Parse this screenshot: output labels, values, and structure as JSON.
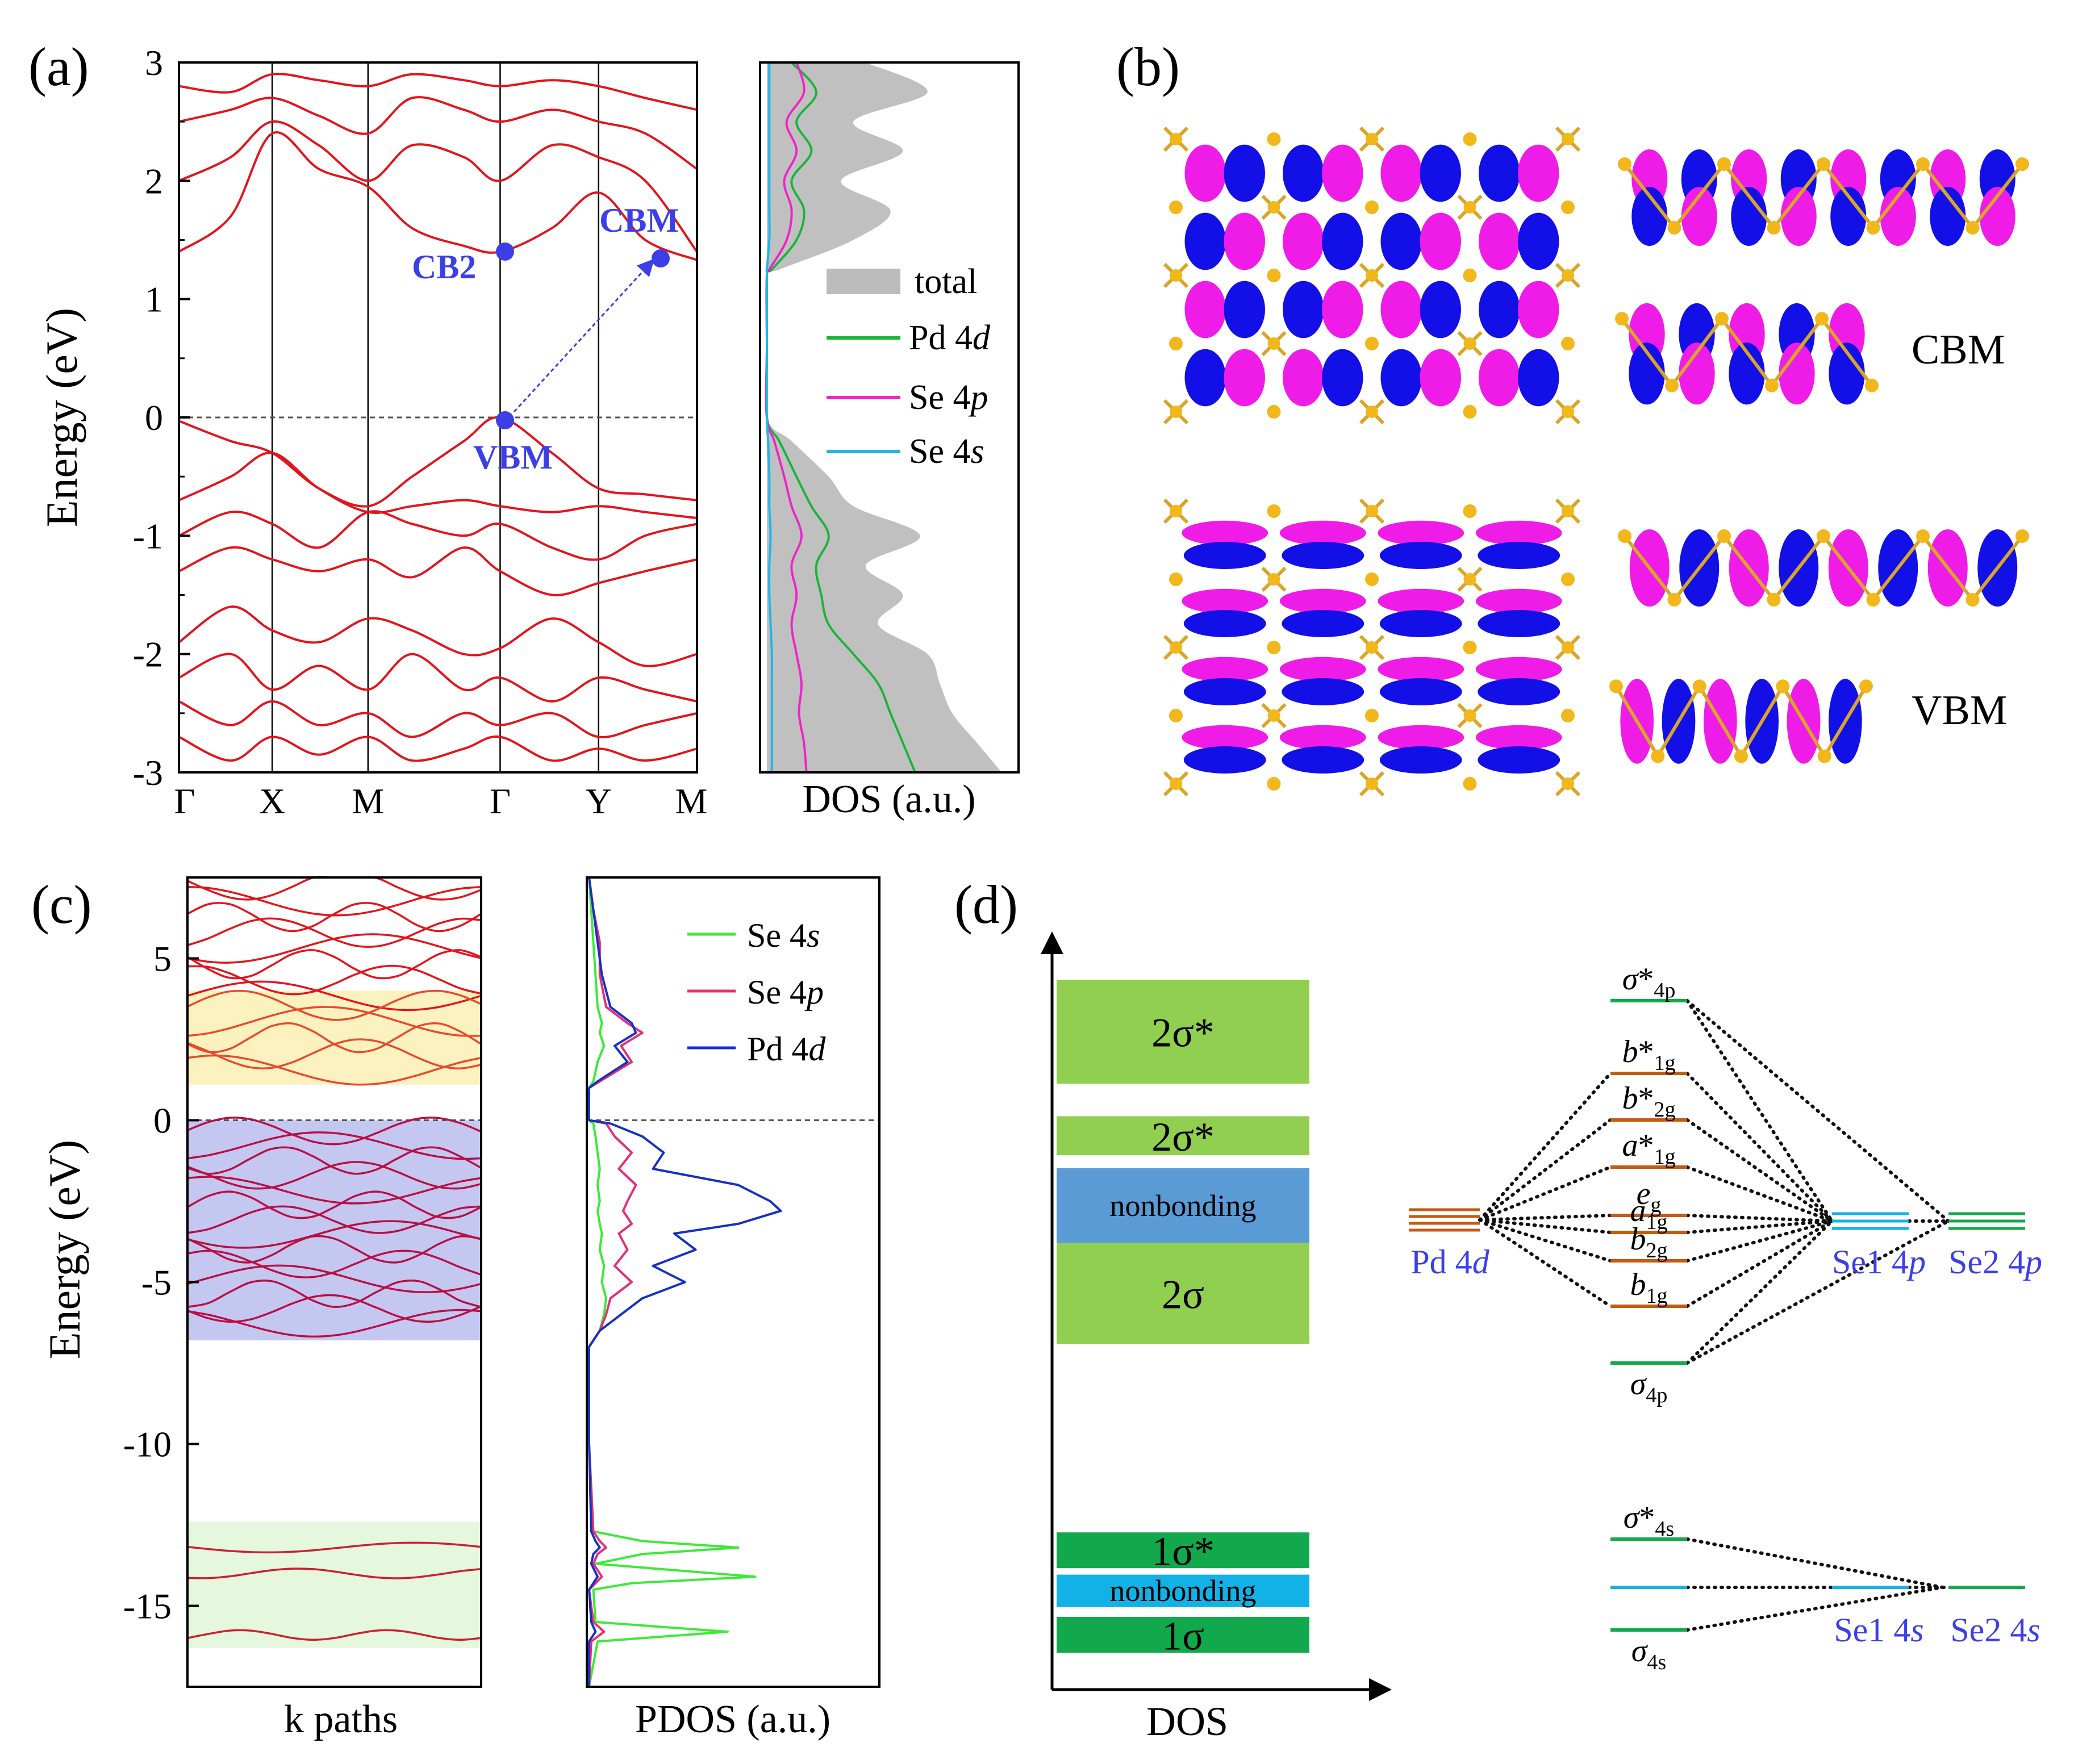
{
  "panels": {
    "a": {
      "label": "(a)"
    },
    "b": {
      "label": "(b)",
      "cbm_label": "CBM",
      "vbm_label": "VBM"
    },
    "c": {
      "label": "(c)"
    },
    "d": {
      "label": "(d)"
    }
  },
  "chart_data": [
    {
      "id": "a-bands",
      "type": "line",
      "ylabel": "Energy (eV)",
      "ylim": [
        -3,
        3
      ],
      "yticks": [
        "3",
        "2",
        "1",
        "0",
        "-1",
        "-2",
        "-3"
      ],
      "ytick_values": [
        3,
        2,
        1,
        0,
        -1,
        -2,
        -3
      ],
      "kpath_labels": [
        "Γ",
        "X",
        "M",
        "Γ",
        "Y",
        "M"
      ],
      "kpath_positions": [
        0,
        0.18,
        0.365,
        0.62,
        0.81,
        1.0
      ],
      "fermi_level": 0,
      "annotations": [
        {
          "text": "CBM",
          "k": 0.94,
          "E": 1.33
        },
        {
          "text": "CB2",
          "k": 0.62,
          "E": 1.4
        },
        {
          "text": "VBM",
          "k": 0.62,
          "E": 0.0
        }
      ],
      "series_color": "#e3141c",
      "series": [
        {
          "name": "cb1",
          "k": [
            0,
            0.1,
            0.18,
            0.27,
            0.365,
            0.45,
            0.55,
            0.62,
            0.72,
            0.81,
            0.9,
            1.0
          ],
          "E": [
            1.4,
            1.7,
            2.4,
            2.1,
            1.95,
            1.6,
            1.45,
            1.4,
            1.6,
            1.9,
            1.5,
            1.33
          ]
        },
        {
          "name": "cb2",
          "k": [
            0,
            0.1,
            0.18,
            0.27,
            0.365,
            0.45,
            0.55,
            0.62,
            0.72,
            0.81,
            0.9,
            1.0
          ],
          "E": [
            2.0,
            2.2,
            2.5,
            2.3,
            2.0,
            2.3,
            2.2,
            2.0,
            2.3,
            2.2,
            2.0,
            1.4
          ]
        },
        {
          "name": "cb3",
          "k": [
            0,
            0.1,
            0.18,
            0.27,
            0.365,
            0.45,
            0.55,
            0.62,
            0.72,
            0.81,
            0.9,
            1.0
          ],
          "E": [
            2.5,
            2.6,
            2.7,
            2.55,
            2.4,
            2.7,
            2.6,
            2.5,
            2.6,
            2.5,
            2.4,
            2.1
          ]
        },
        {
          "name": "cb4",
          "k": [
            0,
            0.1,
            0.18,
            0.27,
            0.365,
            0.45,
            0.55,
            0.62,
            0.72,
            0.81,
            0.9,
            1.0
          ],
          "E": [
            2.8,
            2.75,
            2.9,
            2.85,
            2.8,
            2.9,
            2.85,
            2.8,
            2.85,
            2.8,
            2.7,
            2.6
          ]
        },
        {
          "name": "vb1",
          "k": [
            0,
            0.1,
            0.18,
            0.27,
            0.365,
            0.45,
            0.55,
            0.62,
            0.72,
            0.81,
            0.9,
            1.0
          ],
          "E": [
            -0.03,
            -0.2,
            -0.3,
            -0.6,
            -0.75,
            -0.5,
            -0.2,
            0.0,
            -0.3,
            -0.6,
            -0.65,
            -0.7
          ]
        },
        {
          "name": "vb2",
          "k": [
            0,
            0.1,
            0.18,
            0.27,
            0.365,
            0.45,
            0.55,
            0.62,
            0.72,
            0.81,
            0.9,
            1.0
          ],
          "E": [
            -0.7,
            -0.5,
            -0.3,
            -0.6,
            -0.8,
            -0.75,
            -0.7,
            -0.75,
            -0.8,
            -0.75,
            -0.8,
            -0.85
          ]
        },
        {
          "name": "vb3",
          "k": [
            0,
            0.1,
            0.18,
            0.27,
            0.365,
            0.45,
            0.55,
            0.62,
            0.72,
            0.81,
            0.9,
            1.0
          ],
          "E": [
            -1.0,
            -0.8,
            -0.9,
            -1.1,
            -0.8,
            -0.9,
            -1.0,
            -0.9,
            -1.1,
            -1.2,
            -1.0,
            -0.9
          ]
        },
        {
          "name": "vb4",
          "k": [
            0,
            0.1,
            0.18,
            0.27,
            0.365,
            0.45,
            0.55,
            0.62,
            0.72,
            0.81,
            0.9,
            1.0
          ],
          "E": [
            -1.3,
            -1.1,
            -1.2,
            -1.3,
            -1.2,
            -1.35,
            -1.1,
            -1.3,
            -1.5,
            -1.4,
            -1.3,
            -1.2
          ]
        },
        {
          "name": "vb5",
          "k": [
            0,
            0.1,
            0.18,
            0.27,
            0.365,
            0.45,
            0.55,
            0.62,
            0.72,
            0.81,
            0.9,
            1.0
          ],
          "E": [
            -1.9,
            -1.6,
            -1.8,
            -1.9,
            -1.7,
            -1.8,
            -2.0,
            -1.95,
            -1.7,
            -1.9,
            -2.1,
            -2.0
          ]
        },
        {
          "name": "vb6",
          "k": [
            0,
            0.1,
            0.18,
            0.27,
            0.365,
            0.45,
            0.55,
            0.62,
            0.72,
            0.81,
            0.9,
            1.0
          ],
          "E": [
            -2.2,
            -2.0,
            -2.3,
            -2.1,
            -2.3,
            -2.0,
            -2.3,
            -2.2,
            -2.4,
            -2.2,
            -2.3,
            -2.4
          ]
        },
        {
          "name": "vb7",
          "k": [
            0,
            0.1,
            0.18,
            0.27,
            0.365,
            0.45,
            0.55,
            0.62,
            0.72,
            0.81,
            0.9,
            1.0
          ],
          "E": [
            -2.4,
            -2.6,
            -2.4,
            -2.6,
            -2.5,
            -2.7,
            -2.5,
            -2.6,
            -2.5,
            -2.7,
            -2.6,
            -2.5
          ]
        },
        {
          "name": "vb8",
          "k": [
            0,
            0.1,
            0.18,
            0.27,
            0.365,
            0.45,
            0.55,
            0.62,
            0.72,
            0.81,
            0.9,
            1.0
          ],
          "E": [
            -2.7,
            -2.9,
            -2.7,
            -2.85,
            -2.7,
            -2.9,
            -2.8,
            -2.7,
            -2.9,
            -2.8,
            -2.9,
            -2.8
          ]
        }
      ]
    },
    {
      "id": "a-dos",
      "type": "area",
      "xlabel": "DOS (a.u.)",
      "ylim": [
        -3,
        3
      ],
      "energy": [
        3.0,
        2.75,
        2.5,
        2.25,
        2.0,
        1.75,
        1.5,
        1.25,
        1.2,
        0.6,
        0.0,
        -0.2,
        -0.5,
        -0.75,
        -1.0,
        -1.25,
        -1.5,
        -1.75,
        -2.0,
        -2.25,
        -2.5,
        -2.75,
        -3.0
      ],
      "series": [
        {
          "name": "total",
          "color": "#c0c0c0",
          "values": [
            0.4,
            0.65,
            0.35,
            0.55,
            0.3,
            0.5,
            0.35,
            0.05,
            0.0,
            0.0,
            0.0,
            0.1,
            0.25,
            0.35,
            0.62,
            0.4,
            0.55,
            0.45,
            0.65,
            0.7,
            0.75,
            0.85,
            0.95
          ]
        },
        {
          "name": "Pd 4d",
          "color": "#1bb33c",
          "values": [
            0.1,
            0.2,
            0.12,
            0.18,
            0.1,
            0.15,
            0.12,
            0.02,
            0.0,
            0.0,
            0.0,
            0.05,
            0.12,
            0.18,
            0.25,
            0.2,
            0.22,
            0.25,
            0.35,
            0.45,
            0.5,
            0.55,
            0.6
          ]
        },
        {
          "name": "Se 4p",
          "color": "#ee26c5",
          "values": [
            0.12,
            0.15,
            0.08,
            0.12,
            0.07,
            0.1,
            0.08,
            0.01,
            0.0,
            0.0,
            0.0,
            0.03,
            0.07,
            0.1,
            0.14,
            0.1,
            0.12,
            0.1,
            0.12,
            0.14,
            0.13,
            0.15,
            0.16
          ]
        },
        {
          "name": "Se 4s",
          "color": "#20b6e6",
          "values": [
            0.01,
            0.01,
            0.01,
            0.01,
            0.01,
            0.01,
            0.01,
            0.0,
            0.0,
            0.0,
            0.0,
            0.005,
            0.01,
            0.01,
            0.015,
            0.01,
            0.01,
            0.015,
            0.02,
            0.02,
            0.02,
            0.02,
            0.02
          ]
        }
      ],
      "legend": [
        {
          "symbol": "total",
          "prefix": "total",
          "italic": ""
        },
        {
          "symbol": "Pd 4d",
          "prefix": "Pd 4",
          "italic": "d"
        },
        {
          "symbol": "Se 4p",
          "prefix": "Se 4",
          "italic": "p"
        },
        {
          "symbol": "Se 4s",
          "prefix": "Se 4",
          "italic": "s"
        }
      ]
    },
    {
      "id": "c-bands",
      "type": "line",
      "xlabel": "k paths",
      "ylabel": "Energy (eV)",
      "ylim": [
        -17.5,
        7.5
      ],
      "yticks": [
        "5",
        "0",
        "-5",
        "-10",
        "-15"
      ],
      "ytick_values": [
        5,
        0,
        -5,
        -10,
        -15
      ],
      "fermi_level": 0,
      "shaded_regions": [
        {
          "from": 1.1,
          "to": 4.0,
          "color": "#fbf2c0"
        },
        {
          "from": -6.8,
          "to": 0.0,
          "color": "#c4c7f0"
        },
        {
          "from": -16.3,
          "to": -12.4,
          "color": "#e5f7dc"
        }
      ],
      "band_groups": [
        {
          "name": "upper conduction",
          "color": "#e3141c",
          "count": 8,
          "E_min": 3.6,
          "E_max": 7.5
        },
        {
          "name": "conduction",
          "color": "#e84a2c",
          "count": 5,
          "E_min": 1.3,
          "E_max": 3.8
        },
        {
          "name": "valence",
          "color": "#b80f46",
          "count": 14,
          "E_min": -6.5,
          "E_max": -0.1
        },
        {
          "name": "Se 4s bands",
          "color": "#cc1f35",
          "count": 3,
          "centers": [
            -13.2,
            -14.0,
            -15.9
          ]
        }
      ]
    },
    {
      "id": "c-pdos",
      "type": "line",
      "xlabel": "PDOS (a.u.)",
      "ylim": [
        -17.5,
        7.5
      ],
      "energy": [
        7.5,
        6.5,
        5.5,
        4.5,
        3.5,
        3.0,
        2.7,
        2.3,
        1.8,
        1.2,
        1.0,
        0.2,
        0.0,
        -0.1,
        -0.5,
        -1.0,
        -1.5,
        -2.0,
        -2.5,
        -2.8,
        -3.2,
        -3.5,
        -4.0,
        -4.5,
        -5.0,
        -5.5,
        -6.0,
        -6.5,
        -7.0,
        -10.0,
        -12.7,
        -13.0,
        -13.2,
        -13.4,
        -13.7,
        -14.1,
        -14.3,
        -14.5,
        -15.5,
        -15.8,
        -16.1,
        -17.5
      ],
      "series": [
        {
          "name": "Se 4s",
          "color": "#3dea37",
          "values": [
            0.0,
            0.01,
            0.02,
            0.03,
            0.04,
            0.06,
            0.05,
            0.07,
            0.04,
            0.02,
            0.0,
            0.0,
            0.0,
            0.02,
            0.03,
            0.04,
            0.05,
            0.04,
            0.05,
            0.04,
            0.05,
            0.06,
            0.05,
            0.07,
            0.06,
            0.08,
            0.07,
            0.05,
            0.0,
            0.0,
            0.02,
            0.25,
            0.7,
            0.25,
            0.03,
            0.78,
            0.2,
            0.02,
            0.03,
            0.65,
            0.04,
            0.0
          ]
        },
        {
          "name": "Se 4p",
          "color": "#e52e77",
          "values": [
            0.0,
            0.02,
            0.05,
            0.05,
            0.08,
            0.18,
            0.25,
            0.15,
            0.2,
            0.05,
            0.0,
            0.0,
            0.0,
            0.08,
            0.12,
            0.2,
            0.14,
            0.22,
            0.18,
            0.16,
            0.2,
            0.14,
            0.18,
            0.12,
            0.2,
            0.1,
            0.08,
            0.05,
            0.0,
            0.0,
            0.02,
            0.05,
            0.08,
            0.04,
            0.02,
            0.06,
            0.03,
            0.0,
            0.02,
            0.07,
            0.01,
            0.0
          ]
        },
        {
          "name": "Pd 4d",
          "color": "#1630c4",
          "values": [
            0.0,
            0.02,
            0.04,
            0.06,
            0.1,
            0.2,
            0.22,
            0.12,
            0.18,
            0.04,
            0.0,
            0.0,
            0.0,
            0.1,
            0.25,
            0.35,
            0.3,
            0.7,
            0.85,
            0.9,
            0.7,
            0.4,
            0.5,
            0.3,
            0.45,
            0.25,
            0.15,
            0.05,
            0.0,
            0.0,
            0.01,
            0.03,
            0.05,
            0.02,
            0.01,
            0.04,
            0.02,
            0.0,
            0.01,
            0.03,
            0.0,
            0.0
          ]
        }
      ],
      "legend": [
        {
          "symbol": "Se 4s",
          "prefix": "Se 4",
          "italic": "s"
        },
        {
          "symbol": "Se 4p",
          "prefix": "Se 4",
          "italic": "p"
        },
        {
          "symbol": "Pd 4d",
          "prefix": "Pd 4",
          "italic": "d"
        }
      ]
    },
    {
      "id": "d-dos-blocks",
      "type": "bar",
      "xlabel": "DOS",
      "blocks": [
        {
          "label": "2σ*",
          "color": "#91cf50",
          "from": 1.3,
          "to": 4.5
        },
        {
          "label": "2σ*",
          "color": "#91cf50",
          "from": -0.9,
          "to": 0.3
        },
        {
          "label": "nonbonding",
          "color": "#5b9bd5",
          "from": -3.6,
          "to": -1.3
        },
        {
          "label": "2σ",
          "color": "#91cf50",
          "from": -6.7,
          "to": -3.6
        },
        {
          "label": "1σ*",
          "color": "#12a94d",
          "from": -13.6,
          "to": -12.5
        },
        {
          "label": "nonbonding",
          "color": "#12b2e6",
          "from": -14.8,
          "to": -13.8
        },
        {
          "label": "1σ",
          "color": "#12a94d",
          "from": -16.2,
          "to": -15.1
        }
      ]
    },
    {
      "id": "d-mo-diagram",
      "type": "diagram",
      "atomic_levels": [
        {
          "label": "Pd 4",
          "italic": "d",
          "color": "#c55a11"
        },
        {
          "label": "Se1 4",
          "italic": "p",
          "color": "#12b2e6"
        },
        {
          "label": "Se2 4",
          "italic": "p",
          "color": "#12a94d"
        },
        {
          "label": "Se1 4",
          "italic": "s",
          "color": "#12b2e6"
        },
        {
          "label": "Se2 4",
          "italic": "s",
          "color": "#12a94d"
        }
      ],
      "mo_levels_4p": [
        {
          "base": "σ",
          "star": "*",
          "sub": "4p",
          "color": "#12a94d"
        },
        {
          "base": "b",
          "star": "*",
          "sub": "1g",
          "color": "#c55a11"
        },
        {
          "base": "b",
          "star": "*",
          "sub": "2g",
          "color": "#c55a11"
        },
        {
          "base": "a",
          "star": "*",
          "sub": "1g",
          "color": "#c55a11"
        },
        {
          "base": "e",
          "star": "",
          "sub": "g",
          "color": "#c55a11"
        },
        {
          "base": "a",
          "star": "",
          "sub": "1g",
          "color": "#c55a11"
        },
        {
          "base": "b",
          "star": "",
          "sub": "2g",
          "color": "#c55a11"
        },
        {
          "base": "b",
          "star": "",
          "sub": "1g",
          "color": "#c55a11"
        },
        {
          "base": "σ",
          "star": "",
          "sub": "4p",
          "color": "#12a94d"
        }
      ],
      "mo_levels_4s": [
        {
          "base": "σ",
          "star": "*",
          "sub": "4s",
          "color": "#12a94d"
        },
        {
          "base": "",
          "star": "",
          "sub": "",
          "color": "#12b2e6"
        },
        {
          "base": "σ",
          "star": "",
          "sub": "4s",
          "color": "#12a94d"
        }
      ]
    }
  ]
}
